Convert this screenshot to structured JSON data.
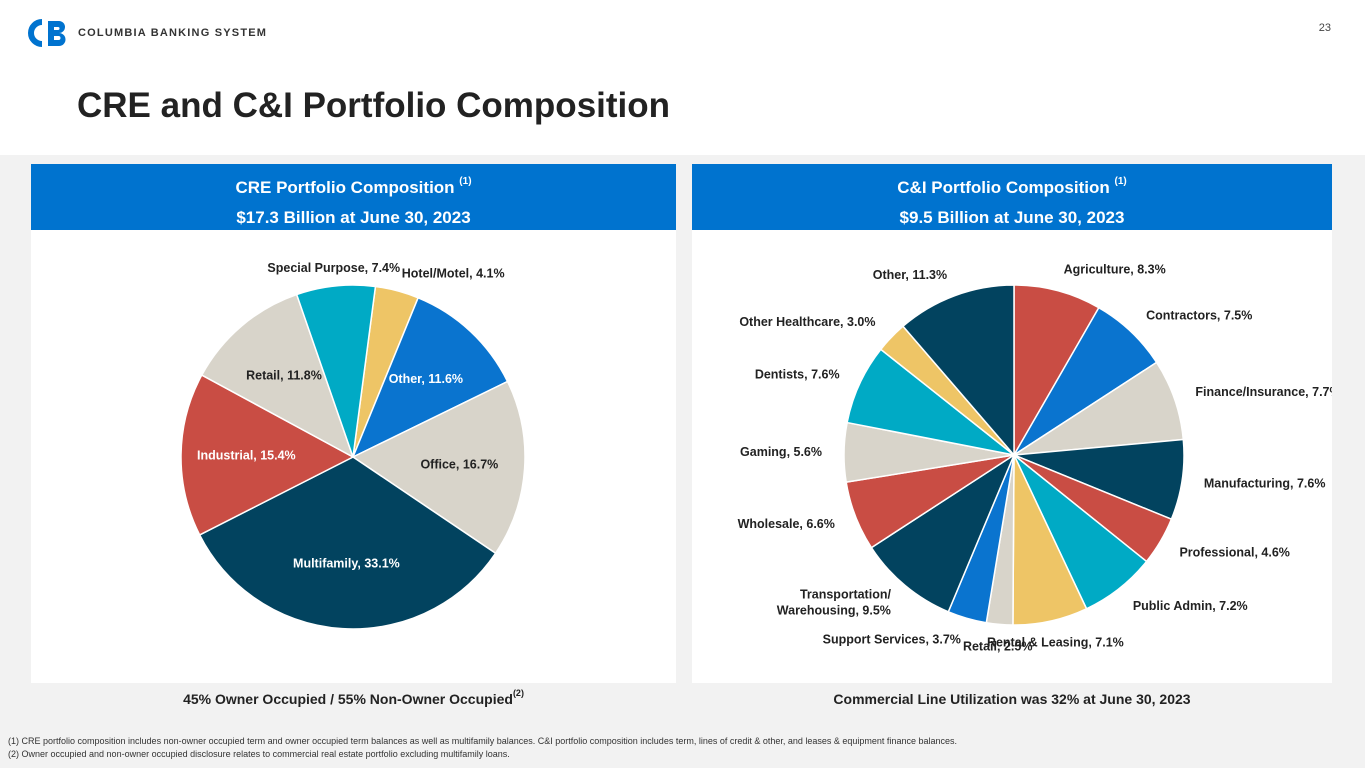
{
  "header": {
    "logo_text": "COLUMBIA BANKING SYSTEM",
    "page_number": "23",
    "title": "CRE and C&I Portfolio Composition",
    "brand_color": "#0073cf"
  },
  "cre_panel": {
    "heading": "CRE Portfolio Composition",
    "heading_sup": "(1)",
    "subheading": "$17.3 Billion at June 30, 2023",
    "bottom_note": "45% Owner Occupied / 55% Non-Owner Occupied",
    "bottom_note_sup": "(2)"
  },
  "ci_panel": {
    "heading": "C&I Portfolio Composition",
    "heading_sup": "(1)",
    "subheading": "$9.5 Billion at June 30, 2023",
    "bottom_note": "Commercial Line Utilization was 32% at June 30, 2023"
  },
  "footnotes": [
    "(1) CRE portfolio composition includes non-owner occupied term and owner occupied term balances as well as multifamily balances. C&I portfolio composition includes term, lines of credit & other, and leases & equipment finance balances.",
    "(2) Owner occupied and non-owner occupied disclosure relates to commercial real estate portfolio excluding multifamily loans."
  ],
  "chart_data": [
    {
      "type": "pie",
      "title": "CRE Portfolio Composition",
      "categories": [
        "Hotel/Motel",
        "Other",
        "Office",
        "Multifamily",
        "Industrial",
        "Retail",
        "Special Purpose"
      ],
      "values": [
        4.1,
        11.6,
        16.7,
        33.1,
        15.4,
        11.8,
        7.4
      ],
      "colors": [
        "#eec566",
        "#0a74cf",
        "#d8d4ca",
        "#02435f",
        "#c94d44",
        "#d8d4ca",
        "#00aac5"
      ],
      "label_colors": [
        "#222222",
        "#ffffff",
        "#222222",
        "#ffffff",
        "#ffffff",
        "#222222",
        "#222222"
      ],
      "unit": "%"
    },
    {
      "type": "pie",
      "title": "C&I Portfolio Composition",
      "categories": [
        "Agriculture",
        "Contractors",
        "Finance/Insurance",
        "Manufacturing",
        "Professional",
        "Public Admin",
        "Rental & Leasing",
        "Retail",
        "Support Services",
        "Transportation/ Warehousing",
        "Wholesale",
        "Gaming",
        "Dentists",
        "Other Healthcare",
        "Other"
      ],
      "values": [
        8.3,
        7.5,
        7.7,
        7.6,
        4.6,
        7.2,
        7.1,
        2.5,
        3.7,
        9.5,
        6.6,
        5.6,
        7.6,
        3.0,
        11.3
      ],
      "colors": [
        "#c94d44",
        "#0a74cf",
        "#d8d4ca",
        "#02435f",
        "#c94d44",
        "#00aac5",
        "#eec566",
        "#d8d4ca",
        "#0a74cf",
        "#02435f",
        "#c94d44",
        "#d8d4ca",
        "#00aac5",
        "#eec566",
        "#02435f"
      ],
      "unit": "%"
    }
  ]
}
